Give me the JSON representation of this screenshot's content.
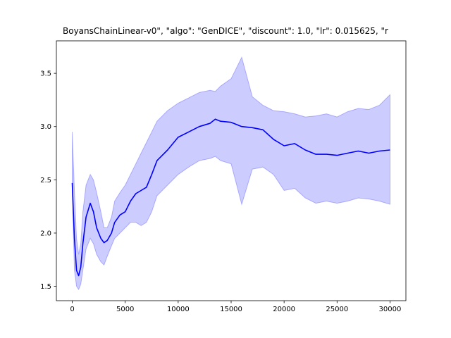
{
  "chart_data": {
    "type": "line",
    "title": "BoyansChainLinear-v0\", \"algo\": \"GenDICE\", \"discount\": 1.0, \"lr\": 0.015625, \"r",
    "xlabel": "",
    "ylabel": "",
    "xlim": [
      -1500,
      31500
    ],
    "ylim": [
      1.365,
      3.805
    ],
    "xticks": [
      0,
      5000,
      10000,
      15000,
      20000,
      25000,
      30000
    ],
    "xtick_labels": [
      "0",
      "5000",
      "10000",
      "15000",
      "20000",
      "25000",
      "30000"
    ],
    "yticks": [
      1.5,
      2.0,
      2.5,
      3.0,
      3.5
    ],
    "ytick_labels": [
      "1.5",
      "2.0",
      "2.5",
      "3.0",
      "3.5"
    ],
    "grid": false,
    "series": [
      {
        "line_color": "#0000ff",
        "band_color": "#0000ff",
        "x": [
          0,
          200,
          400,
          600,
          800,
          1000,
          1300,
          1700,
          2000,
          2300,
          2700,
          3000,
          3300,
          3700,
          4000,
          4500,
          5000,
          5500,
          6000,
          6500,
          7000,
          7500,
          8000,
          9000,
          10000,
          11000,
          12000,
          13000,
          13500,
          14000,
          15000,
          16000,
          17000,
          18000,
          19000,
          20000,
          21000,
          22000,
          23000,
          24000,
          25000,
          26000,
          27000,
          28000,
          29000,
          30000
        ],
        "mean": [
          2.47,
          1.95,
          1.65,
          1.6,
          1.68,
          1.9,
          2.15,
          2.28,
          2.2,
          2.05,
          1.95,
          1.91,
          1.93,
          2.0,
          2.1,
          2.17,
          2.2,
          2.3,
          2.37,
          2.4,
          2.43,
          2.55,
          2.68,
          2.78,
          2.9,
          2.95,
          3.0,
          3.03,
          3.07,
          3.05,
          3.04,
          3.0,
          2.99,
          2.97,
          2.88,
          2.82,
          2.84,
          2.78,
          2.74,
          2.74,
          2.73,
          2.75,
          2.77,
          2.75,
          2.77,
          2.78
        ],
        "upper": [
          2.95,
          2.4,
          1.95,
          1.8,
          1.9,
          2.2,
          2.45,
          2.55,
          2.5,
          2.38,
          2.2,
          2.05,
          2.05,
          2.15,
          2.3,
          2.38,
          2.45,
          2.55,
          2.65,
          2.75,
          2.85,
          2.95,
          3.05,
          3.15,
          3.22,
          3.27,
          3.32,
          3.34,
          3.33,
          3.38,
          3.45,
          3.65,
          3.28,
          3.2,
          3.15,
          3.14,
          3.12,
          3.09,
          3.1,
          3.12,
          3.09,
          3.14,
          3.17,
          3.16,
          3.2,
          3.3
        ],
        "lower": [
          2.4,
          1.65,
          1.5,
          1.47,
          1.52,
          1.65,
          1.85,
          1.95,
          1.9,
          1.8,
          1.73,
          1.7,
          1.78,
          1.88,
          1.95,
          2.0,
          2.05,
          2.1,
          2.1,
          2.07,
          2.1,
          2.2,
          2.35,
          2.45,
          2.55,
          2.62,
          2.68,
          2.7,
          2.72,
          2.68,
          2.65,
          2.27,
          2.6,
          2.62,
          2.55,
          2.4,
          2.42,
          2.33,
          2.28,
          2.3,
          2.28,
          2.3,
          2.33,
          2.32,
          2.3,
          2.27
        ]
      }
    ]
  }
}
